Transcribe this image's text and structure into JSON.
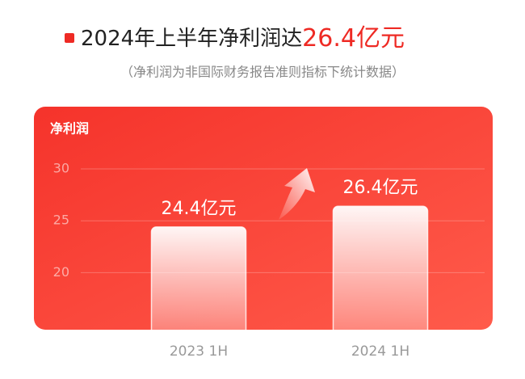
{
  "chart_data": {
    "type": "bar",
    "title": "2024年上半年净利润达",
    "title_highlight": "26.4亿元",
    "subtitle": "（净利润为非国际财务报告准则指标下统计数据）",
    "y_label": "净利润",
    "categories": [
      "2023 1H",
      "2024 1H"
    ],
    "values": [
      24.4,
      26.4
    ],
    "value_labels": [
      "24.4亿元",
      "26.4亿元"
    ],
    "ylim": [
      14.5,
      36
    ],
    "yticks": [
      20,
      25,
      30
    ],
    "grid": true,
    "color": "#ee2a24"
  }
}
